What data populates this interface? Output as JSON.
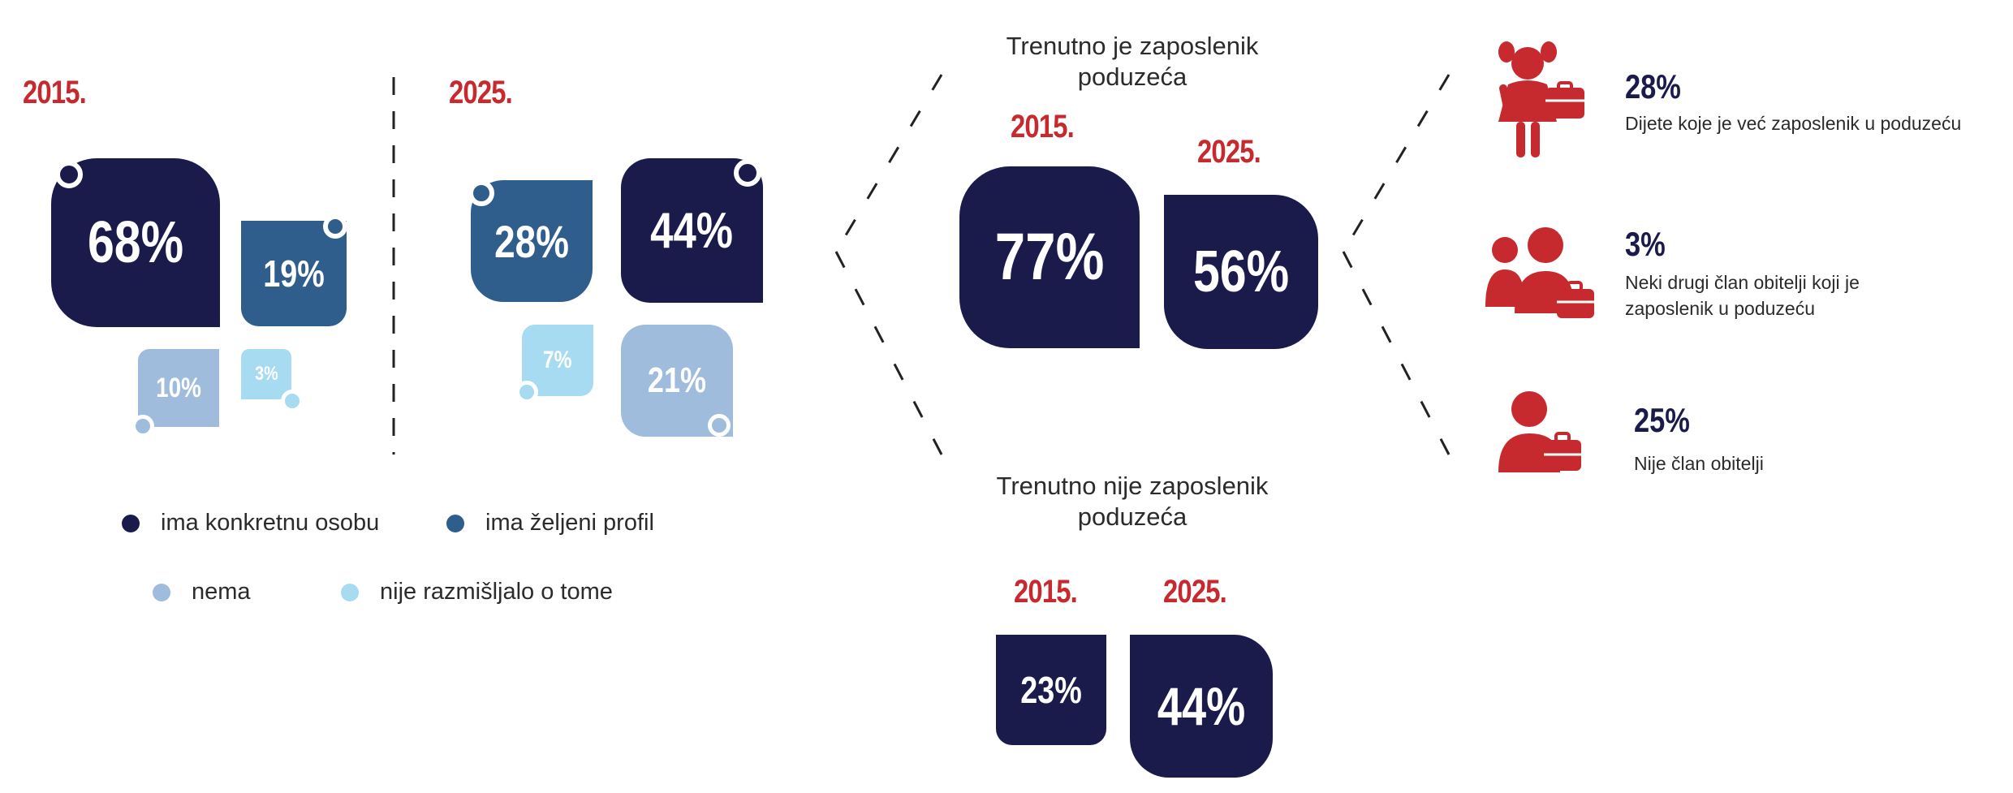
{
  "chart_data": [
    {
      "type": "tile",
      "group": "2015",
      "year_label": "2015.",
      "categories": [
        "ima konkretnu osobu",
        "ima željeni profil",
        "nema",
        "nije razmišljalo o tome"
      ],
      "values": [
        68,
        19,
        10,
        3
      ],
      "labels": [
        "68%",
        "19%",
        "10%",
        "3%"
      ]
    },
    {
      "type": "tile",
      "group": "2025",
      "year_label": "2025.",
      "categories": [
        "ima konkretnu osobu",
        "ima željeni profil",
        "nema",
        "nije razmišljalo o tome"
      ],
      "values": [
        44,
        28,
        21,
        7
      ],
      "labels": [
        "44%",
        "28%",
        "21%",
        "7%"
      ]
    },
    {
      "type": "tile",
      "title": "Trenutno je zaposlenik poduzeća",
      "categories": [
        "2015.",
        "2025."
      ],
      "values": [
        77,
        56
      ],
      "labels": [
        "77%",
        "56%"
      ]
    },
    {
      "type": "tile",
      "title": "Trenutno nije zaposlenik poduzeća",
      "categories": [
        "2015.",
        "2025."
      ],
      "values": [
        23,
        44
      ],
      "labels": [
        "23%",
        "44%"
      ]
    },
    {
      "type": "icon-list",
      "items": [
        {
          "value": 28,
          "label": "28%",
          "description": "Dijete koje je već zaposlenik u poduzeću",
          "icon": "girl-briefcase-icon"
        },
        {
          "value": 3,
          "label": "3%",
          "description_lines": [
            "Neki drugi član obitelji koji je",
            "zaposlenik u poduzeću"
          ],
          "icon": "family-briefcase-icon"
        },
        {
          "value": 25,
          "label": "25%",
          "description": "Nije član obitelji",
          "icon": "person-briefcase-icon"
        }
      ]
    }
  ],
  "legend": [
    {
      "label": "ima konkretnu osobu",
      "color": "#1b1b4b"
    },
    {
      "label": "ima željeni profil",
      "color": "#2f5e8c"
    },
    {
      "label": "nema",
      "color": "#9fbcdc"
    },
    {
      "label": "nije razmišljalo o tome",
      "color": "#a6dbf2"
    }
  ],
  "colors": {
    "dark_navy": "#1b1b4b",
    "mid_blue": "#2f5e8c",
    "light_blue": "#9fbcdc",
    "pale_blue": "#a6dbf2",
    "accent_red": "#c62a2f"
  }
}
